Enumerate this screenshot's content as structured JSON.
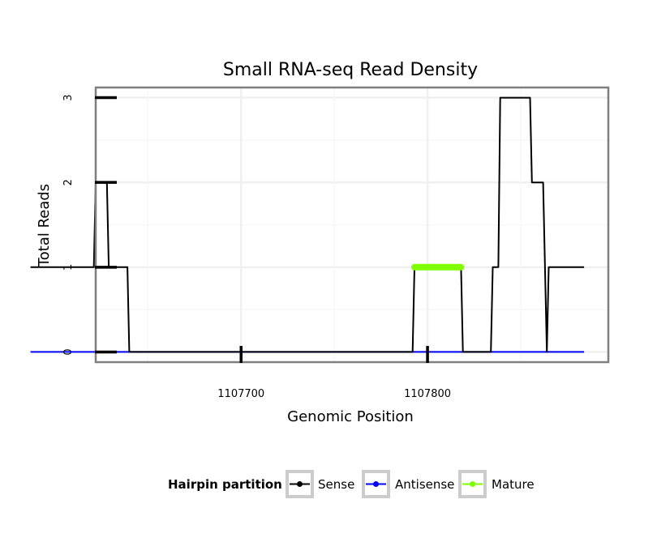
{
  "chart_data": {
    "type": "line",
    "title": "Small RNA-seq Read Density",
    "xlabel": "Genomic Position",
    "ylabel": "Total Reads",
    "x_reversed": true,
    "xlim": [
      1107622,
      1107897
    ],
    "ylim": [
      -0.12,
      3.12
    ],
    "grid": true,
    "x_ticks": [
      1107800,
      1107700
    ],
    "x_tick_labels": [
      "1107800",
      "1107700"
    ],
    "y_ticks": [
      0,
      1,
      2,
      3
    ],
    "y_tick_labels": [
      "0",
      "1",
      "2",
      "3"
    ],
    "legend": {
      "title": "Hairpin partition",
      "position": "bottom",
      "entries": [
        "Sense",
        "Antisense",
        "Mature"
      ]
    },
    "series": [
      {
        "name": "Sense",
        "color": "#000000",
        "x": [
          1107884,
          1107865,
          1107864,
          1107862,
          1107856,
          1107855,
          1107839,
          1107838,
          1107835,
          1107834,
          1107819,
          1107818,
          1107793,
          1107792,
          1107640,
          1107639,
          1107629,
          1107628,
          1107622,
          1107621,
          1107587
        ],
        "y": [
          1,
          1,
          0,
          2,
          2,
          3,
          3,
          1,
          1,
          0,
          0,
          1,
          1,
          0,
          0,
          1,
          1,
          2,
          2,
          1,
          1
        ]
      },
      {
        "name": "Antisense",
        "color": "#0000ff",
        "x": [
          1107884,
          1107587
        ],
        "y": [
          0,
          0
        ]
      },
      {
        "name": "Mature",
        "color": "#7fff00",
        "x": [
          1107818,
          1107793
        ],
        "y": [
          1,
          1
        ]
      }
    ]
  }
}
